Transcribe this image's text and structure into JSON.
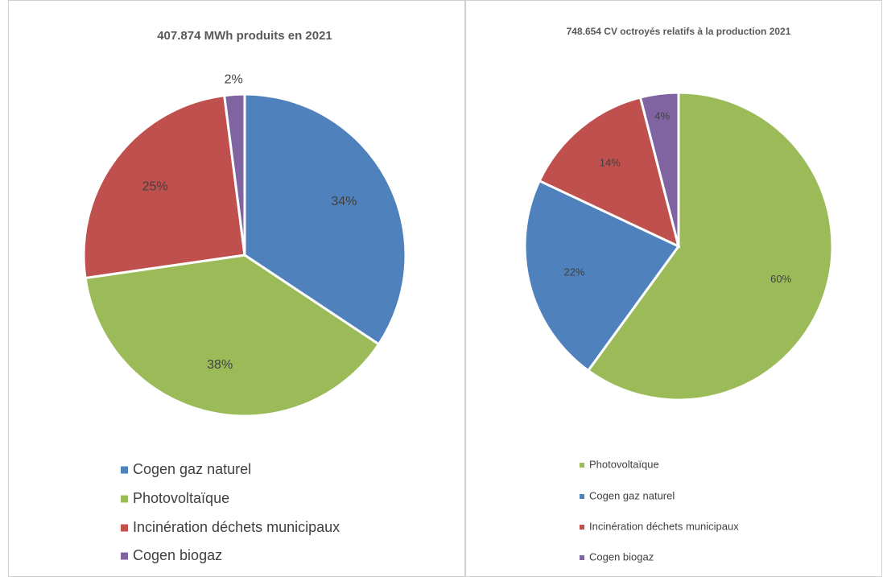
{
  "chart_data": [
    {
      "type": "pie",
      "title": "407.874 MWh produits en 2021",
      "categories": [
        "Cogen gaz naturel",
        "Photovoltaïque",
        "Incinération déchets municipaux",
        "Cogen biogaz"
      ],
      "values": [
        34,
        38,
        25,
        2
      ],
      "value_labels": [
        "34%",
        "38%",
        "25%",
        "2%"
      ],
      "colors": [
        "#4f81bd",
        "#9bbb59",
        "#c0504d",
        "#8064a2"
      ]
    },
    {
      "type": "pie",
      "title": "748.654 CV octroyés relatifs à la production 2021",
      "categories": [
        "Photovoltaïque",
        "Cogen gaz naturel",
        "Incinération déchets municipaux",
        "Cogen biogaz"
      ],
      "values": [
        60,
        22,
        14,
        4
      ],
      "value_labels": [
        "60%",
        "22%",
        "14%",
        "4%"
      ],
      "colors": [
        "#9bbb59",
        "#4f81bd",
        "#c0504d",
        "#8064a2"
      ]
    }
  ]
}
